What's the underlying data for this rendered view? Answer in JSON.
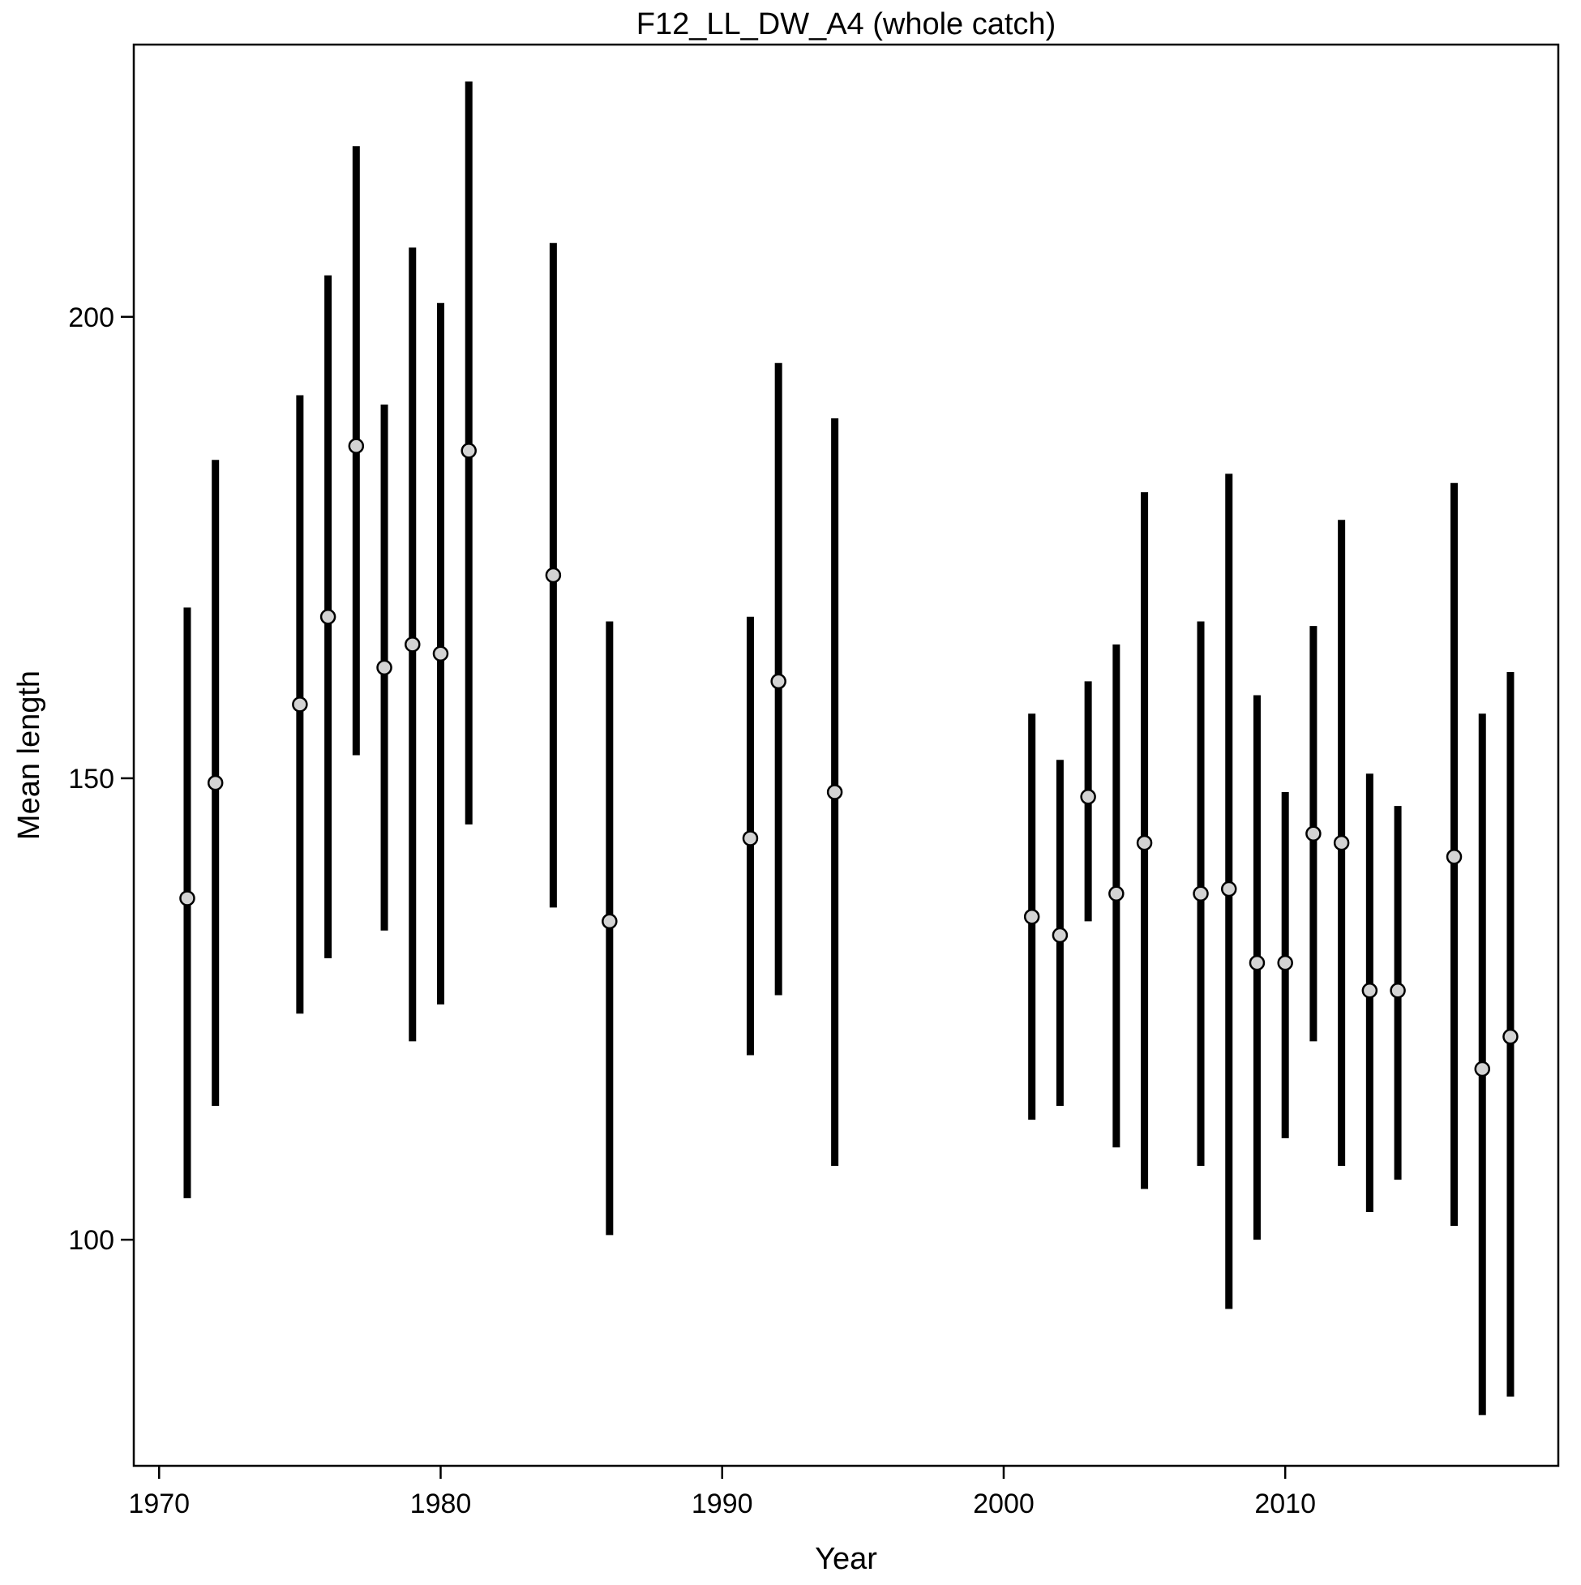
{
  "chart_data": {
    "type": "scatter",
    "subtype": "error-bar",
    "title": "F12_LL_DW_A4 (whole catch)",
    "xlabel": "Year",
    "ylabel": "Mean length",
    "xlim": [
      1969.1,
      2019.7
    ],
    "ylim": [
      75.5,
      229.5
    ],
    "x_ticks": [
      1970,
      1980,
      1990,
      2000,
      2010
    ],
    "y_ticks": [
      100,
      150,
      200
    ],
    "grid": false,
    "legend": "none",
    "colors": {
      "bar": "#000000",
      "point_fill": "#d3d3d3",
      "point_stroke": "#000000",
      "frame": "#000000"
    },
    "series": [
      {
        "points": [
          {
            "year": 1971,
            "mean": 137.0,
            "lower": 104.5,
            "upper": 168.5
          },
          {
            "year": 1972,
            "mean": 149.5,
            "lower": 114.5,
            "upper": 184.5
          },
          {
            "year": 1975,
            "mean": 158.0,
            "lower": 124.5,
            "upper": 191.5
          },
          {
            "year": 1976,
            "mean": 167.5,
            "lower": 130.5,
            "upper": 204.5
          },
          {
            "year": 1977,
            "mean": 186.0,
            "lower": 152.5,
            "upper": 218.5
          },
          {
            "year": 1978,
            "mean": 162.0,
            "lower": 133.5,
            "upper": 190.5
          },
          {
            "year": 1979,
            "mean": 164.5,
            "lower": 121.5,
            "upper": 207.5
          },
          {
            "year": 1980,
            "mean": 163.5,
            "lower": 125.5,
            "upper": 201.5
          },
          {
            "year": 1981,
            "mean": 185.5,
            "lower": 145.0,
            "upper": 225.5
          },
          {
            "year": 1984,
            "mean": 172.0,
            "lower": 136.0,
            "upper": 208.0
          },
          {
            "year": 1986,
            "mean": 134.5,
            "lower": 100.5,
            "upper": 167.0
          },
          {
            "year": 1991,
            "mean": 143.5,
            "lower": 120.0,
            "upper": 167.5
          },
          {
            "year": 1992,
            "mean": 160.5,
            "lower": 126.5,
            "upper": 195.0
          },
          {
            "year": 1994,
            "mean": 148.5,
            "lower": 108.0,
            "upper": 189.0
          },
          {
            "year": 2001,
            "mean": 135.0,
            "lower": 113.0,
            "upper": 157.0
          },
          {
            "year": 2002,
            "mean": 133.0,
            "lower": 114.5,
            "upper": 152.0
          },
          {
            "year": 2003,
            "mean": 148.0,
            "lower": 134.5,
            "upper": 160.5
          },
          {
            "year": 2004,
            "mean": 137.5,
            "lower": 110.0,
            "upper": 164.5
          },
          {
            "year": 2005,
            "mean": 143.0,
            "lower": 105.5,
            "upper": 181.0
          },
          {
            "year": 2007,
            "mean": 137.5,
            "lower": 108.0,
            "upper": 167.0
          },
          {
            "year": 2008,
            "mean": 138.0,
            "lower": 92.5,
            "upper": 183.0
          },
          {
            "year": 2009,
            "mean": 130.0,
            "lower": 100.0,
            "upper": 159.0
          },
          {
            "year": 2010,
            "mean": 130.0,
            "lower": 111.0,
            "upper": 148.5
          },
          {
            "year": 2011,
            "mean": 144.0,
            "lower": 121.5,
            "upper": 166.5
          },
          {
            "year": 2012,
            "mean": 143.0,
            "lower": 108.0,
            "upper": 178.0
          },
          {
            "year": 2013,
            "mean": 127.0,
            "lower": 103.0,
            "upper": 150.5
          },
          {
            "year": 2014,
            "mean": 127.0,
            "lower": 106.5,
            "upper": 147.0
          },
          {
            "year": 2016,
            "mean": 141.5,
            "lower": 101.5,
            "upper": 182.0
          },
          {
            "year": 2017,
            "mean": 118.5,
            "lower": 81.0,
            "upper": 157.0
          },
          {
            "year": 2018,
            "mean": 122.0,
            "lower": 83.0,
            "upper": 161.5
          }
        ]
      }
    ]
  }
}
